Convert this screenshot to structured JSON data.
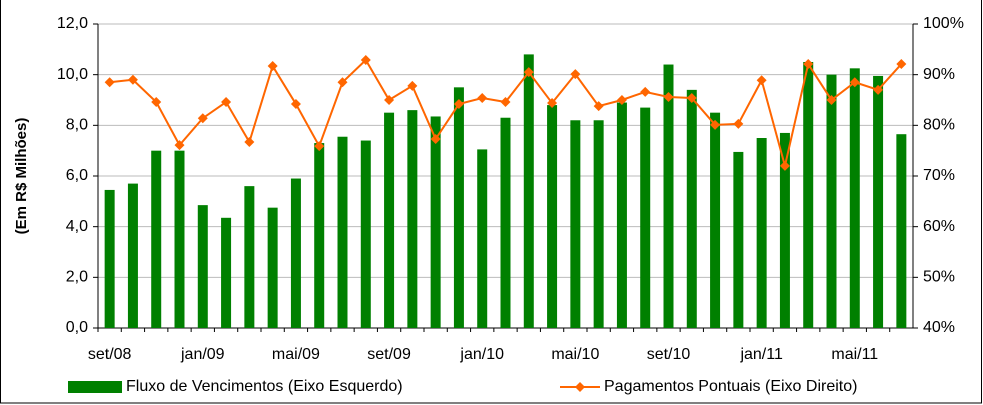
{
  "chart_data": {
    "type": "bar-line",
    "y_label": "(Em R$ Milhões)",
    "categories": [
      "set/08",
      null,
      null,
      null,
      "jan/09",
      null,
      null,
      null,
      "mai/09",
      null,
      null,
      null,
      "set/09",
      null,
      null,
      null,
      "jan/10",
      null,
      null,
      null,
      "mai/10",
      null,
      null,
      null,
      "set/10",
      null,
      null,
      null,
      "jan/11",
      null,
      null,
      null,
      "mai/11",
      null,
      null
    ],
    "series": [
      {
        "name": "Fluxo de Vencimentos (Eixo Esquerdo)",
        "type": "bar",
        "color": "#008000",
        "values": [
          5.45,
          5.7,
          7.0,
          7.0,
          4.85,
          4.35,
          5.6,
          4.75,
          5.9,
          7.3,
          7.55,
          7.4,
          8.5,
          8.6,
          8.35,
          9.5,
          7.05,
          8.3,
          10.8,
          8.8,
          8.2,
          8.2,
          8.9,
          8.7,
          10.4,
          9.4,
          8.5,
          6.95,
          7.5,
          7.7,
          10.5,
          10.0,
          10.25,
          9.95,
          7.65
        ]
      },
      {
        "name": "Pagamentos Pontuais (Eixo Direito)",
        "type": "line",
        "color": "#ff6600",
        "axis": "y2",
        "values": [
          88.5,
          89,
          84.6,
          76.1,
          81.4,
          84.6,
          76.7,
          91.7,
          84.2,
          75.9,
          88.5,
          92.9,
          85,
          87.8,
          77.3,
          84.2,
          85.4,
          84.6,
          90.5,
          84.4,
          90.1,
          83.8,
          85,
          86.6,
          85.6,
          85.4,
          80.1,
          80.3,
          88.9,
          72,
          92.1,
          85,
          88.5,
          87,
          92.1
        ]
      }
    ],
    "ylim": [
      0,
      12
    ],
    "yticks": [
      {
        "value": 0,
        "label": "0,0"
      },
      {
        "value": 2,
        "label": "2,0"
      },
      {
        "value": 4,
        "label": "4,0"
      },
      {
        "value": 6,
        "label": "6,0"
      },
      {
        "value": 8,
        "label": "8,0"
      },
      {
        "value": 10,
        "label": "10,0"
      },
      {
        "value": 12,
        "label": "12,0"
      }
    ],
    "y2lim": [
      40,
      100
    ],
    "y2ticks": [
      {
        "value": 40,
        "label": "40%"
      },
      {
        "value": 50,
        "label": "50%"
      },
      {
        "value": 60,
        "label": "60%"
      },
      {
        "value": 70,
        "label": "70%"
      },
      {
        "value": 80,
        "label": "80%"
      },
      {
        "value": 90,
        "label": "90%"
      },
      {
        "value": 100,
        "label": "100%"
      }
    ],
    "grid": true,
    "legend": "bottom"
  }
}
